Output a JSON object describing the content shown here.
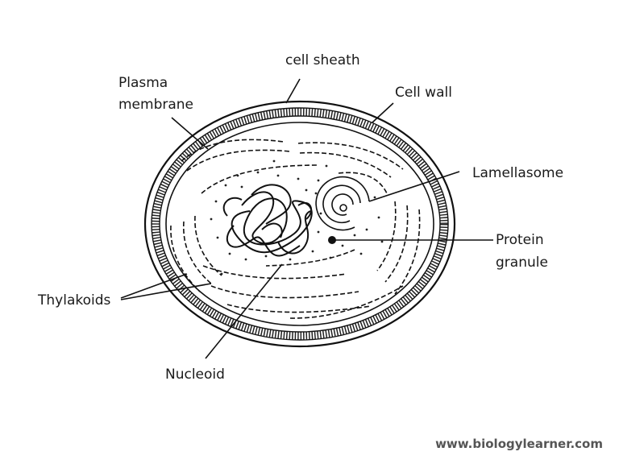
{
  "labels": {
    "cell_sheath": "cell sheath",
    "plasma_membrane_1": "Plasma",
    "plasma_membrane_2": "membrane",
    "cell_wall": "Cell wall",
    "lamellasome": "Lamellasome",
    "protein_granule_1": "Protein",
    "protein_granule_2": "granule",
    "thylakoids": "Thylakoids",
    "nucleoid": "Nucleoid"
  },
  "watermark": "www.biologylearner.com",
  "colors": {
    "ink": "#111111",
    "text": "#1a1a1a",
    "watermark": "#555555"
  }
}
